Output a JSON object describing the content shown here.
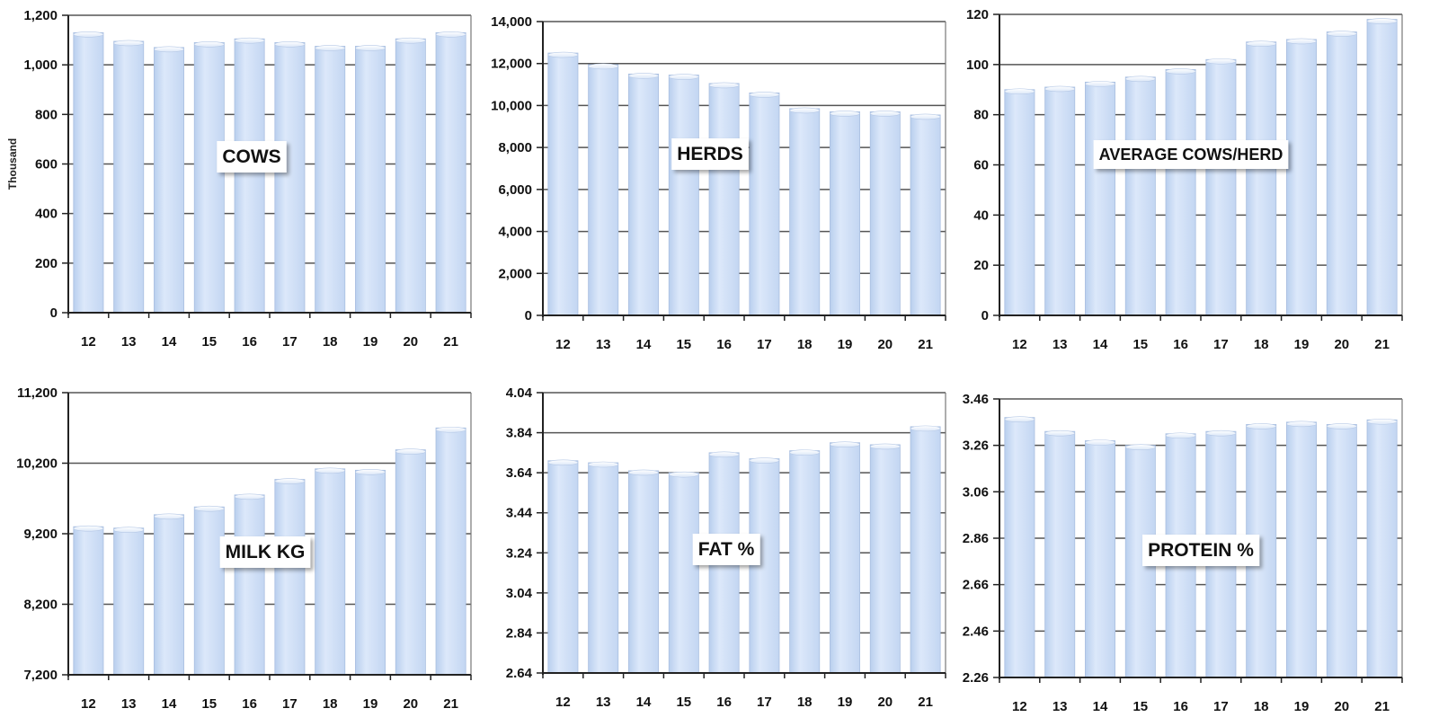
{
  "chart_data": [
    {
      "type": "bar",
      "title": "COWS",
      "ylabel": "Thousand",
      "categories": [
        "12",
        "13",
        "14",
        "15",
        "16",
        "17",
        "18",
        "19",
        "20",
        "21"
      ],
      "values": [
        1130,
        1095,
        1070,
        1090,
        1105,
        1090,
        1075,
        1075,
        1105,
        1130
      ],
      "ylim": [
        0,
        1200
      ],
      "yticks": [
        "0",
        "200",
        "400",
        "600",
        "800",
        "1,000",
        "1,200"
      ],
      "grid": true,
      "bar_color": "#cfe0f7"
    },
    {
      "type": "bar",
      "title": "HERDS",
      "ylabel": "",
      "categories": [
        "12",
        "13",
        "14",
        "15",
        "16",
        "17",
        "18",
        "19",
        "20",
        "21"
      ],
      "values": [
        12500,
        11950,
        11500,
        11450,
        11050,
        10600,
        9850,
        9700,
        9700,
        9550
      ],
      "ylim": [
        0,
        14000
      ],
      "yticks": [
        "0",
        "2,000",
        "4,000",
        "6,000",
        "8,000",
        "10,000",
        "12,000",
        "14,000"
      ],
      "grid": true,
      "bar_color": "#cfe0f7"
    },
    {
      "type": "bar",
      "title": "AVERAGE COWS/HERD",
      "ylabel": "",
      "categories": [
        "12",
        "13",
        "14",
        "15",
        "16",
        "17",
        "18",
        "19",
        "20",
        "21"
      ],
      "values": [
        90,
        91,
        93,
        95,
        98,
        102,
        109,
        110,
        113,
        118
      ],
      "ylim": [
        0,
        120
      ],
      "yticks": [
        "0",
        "20",
        "40",
        "60",
        "80",
        "100",
        "120"
      ],
      "grid": true,
      "bar_color": "#cfe0f7"
    },
    {
      "type": "bar",
      "title": "MILK KG",
      "ylabel": "",
      "categories": [
        "12",
        "13",
        "14",
        "15",
        "16",
        "17",
        "18",
        "19",
        "20",
        "21"
      ],
      "values": [
        9300,
        9280,
        9470,
        9580,
        9750,
        9970,
        10120,
        10100,
        10390,
        10700
      ],
      "ylim": [
        7200,
        11200
      ],
      "yticks": [
        "7,200",
        "8,200",
        "9,200",
        "10,200",
        "11,200"
      ],
      "grid": true,
      "bar_color": "#cfe0f7"
    },
    {
      "type": "bar",
      "title": "FAT %",
      "ylabel": "",
      "categories": [
        "12",
        "13",
        "14",
        "15",
        "16",
        "17",
        "18",
        "19",
        "20",
        "21"
      ],
      "values": [
        3.7,
        3.69,
        3.65,
        3.64,
        3.74,
        3.71,
        3.75,
        3.79,
        3.78,
        3.87
      ],
      "ylim": [
        2.64,
        4.04
      ],
      "yticks": [
        "2.64",
        "2.84",
        "3.04",
        "3.24",
        "3.44",
        "3.64",
        "3.84",
        "4.04"
      ],
      "grid": true,
      "bar_color": "#cfe0f7"
    },
    {
      "type": "bar",
      "title": "PROTEIN %",
      "ylabel": "",
      "categories": [
        "12",
        "13",
        "14",
        "15",
        "16",
        "17",
        "18",
        "19",
        "20",
        "21"
      ],
      "values": [
        3.38,
        3.32,
        3.28,
        3.26,
        3.31,
        3.32,
        3.35,
        3.36,
        3.35,
        3.37
      ],
      "ylim": [
        2.26,
        3.46
      ],
      "yticks": [
        "2.26",
        "2.46",
        "2.66",
        "2.86",
        "3.06",
        "3.26",
        "3.46"
      ],
      "grid": true,
      "bar_color": "#cfe0f7"
    }
  ]
}
